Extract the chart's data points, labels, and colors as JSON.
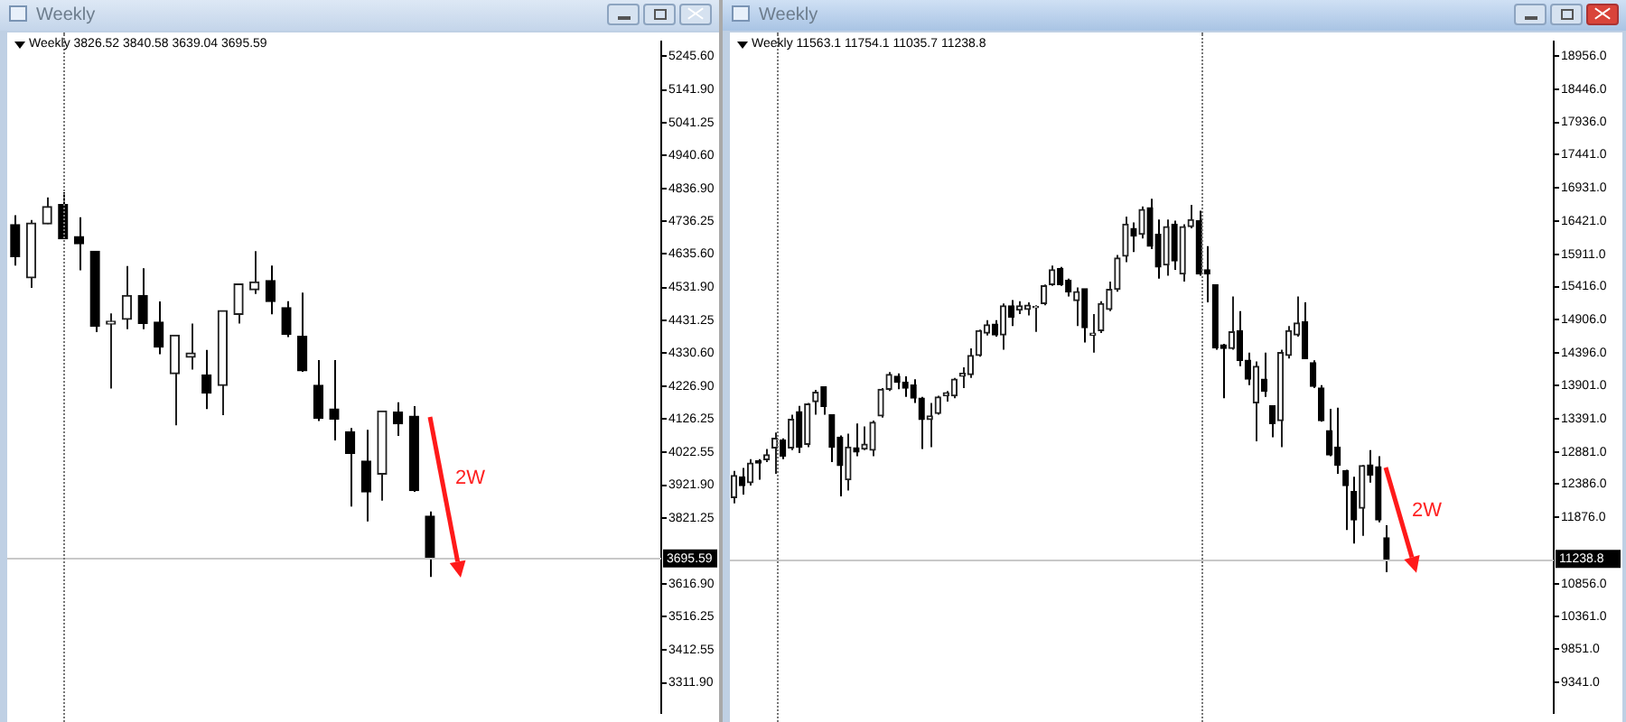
{
  "chart_data": [
    {
      "type": "candlestick",
      "title": "Weekly",
      "subtitle": "Weekly 3826.52 3840.58 3639.04 3695.59",
      "categories": [
        null,
        null,
        null,
        null,
        null,
        null,
        null,
        null,
        null,
        null,
        null,
        null,
        null,
        null,
        null,
        null,
        null,
        null,
        null,
        null,
        null,
        null,
        null,
        null,
        null,
        null,
        null,
        null,
        null,
        null,
        null,
        null,
        null,
        null,
        null,
        null,
        null,
        null,
        null,
        null,
        null
      ],
      "ohlc": [
        [
          4726,
          4755,
          4600,
          4627
        ],
        [
          4562,
          4740,
          4531,
          4731
        ],
        [
          4728,
          4810,
          4728,
          4782
        ],
        [
          4788,
          4826,
          4682,
          4682
        ],
        [
          4689,
          4749,
          4585,
          4667
        ],
        [
          4644,
          4644,
          4394,
          4412
        ],
        [
          4419,
          4452,
          4220,
          4428
        ],
        [
          4434,
          4598,
          4403,
          4507
        ],
        [
          4507,
          4591,
          4403,
          4421
        ],
        [
          4425,
          4489,
          4326,
          4348
        ],
        [
          4266,
          4385,
          4107,
          4385
        ],
        [
          4317,
          4421,
          4279,
          4330
        ],
        [
          4262,
          4339,
          4157,
          4206
        ],
        [
          4230,
          4461,
          4138,
          4461
        ],
        [
          4449,
          4543,
          4421,
          4543
        ],
        [
          4525,
          4644,
          4512,
          4549
        ],
        [
          4553,
          4600,
          4449,
          4489
        ],
        [
          4470,
          4490,
          4379,
          4388
        ],
        [
          4381,
          4516,
          4272,
          4275
        ],
        [
          4230,
          4308,
          4120,
          4129
        ],
        [
          4157,
          4308,
          4060,
          4126
        ],
        [
          4087,
          4098,
          3856,
          4020
        ],
        [
          3996,
          4093,
          3810,
          3901
        ],
        [
          3956,
          4151,
          3874,
          4151
        ],
        [
          4147,
          4178,
          4074,
          4111
        ],
        [
          4135,
          4166,
          3901,
          3905
        ],
        [
          3826.52,
          3840.58,
          3639.04,
          3695.59
        ],
        null,
        null,
        null,
        null,
        null,
        null,
        null,
        null,
        null,
        null,
        null,
        null,
        null,
        null
      ],
      "ylim": [
        3220,
        5290
      ],
      "yticks": [
        {
          "value": 5245.6,
          "label": "5245.60"
        },
        {
          "value": 5141.9,
          "label": "5141.90"
        },
        {
          "value": 5041.25,
          "label": "5041.25"
        },
        {
          "value": 4940.6,
          "label": "4940.60"
        },
        {
          "value": 4836.9,
          "label": "4836.90"
        },
        {
          "value": 4736.25,
          "label": "4736.25"
        },
        {
          "value": 4635.6,
          "label": "4635.60"
        },
        {
          "value": 4531.9,
          "label": "4531.90"
        },
        {
          "value": 4431.25,
          "label": "4431.25"
        },
        {
          "value": 4330.6,
          "label": "4330.60"
        },
        {
          "value": 4226.9,
          "label": "4226.90"
        },
        {
          "value": 4126.25,
          "label": "4126.25"
        },
        {
          "value": 4022.55,
          "label": "4022.55"
        },
        {
          "value": 3921.9,
          "label": "3921.90"
        },
        {
          "value": 3821.25,
          "label": "3821.25"
        },
        {
          "value": 3616.9,
          "label": "3616.90"
        },
        {
          "value": 3516.25,
          "label": "3516.25"
        },
        {
          "value": 3412.55,
          "label": "3412.55"
        },
        {
          "value": 3311.9,
          "label": "3311.90"
        }
      ],
      "ref_lines": [
        {
          "axis": "y",
          "value": 3695.59,
          "label": "3695.59",
          "color": "#c8c8c8"
        }
      ],
      "annotations": [
        "2W"
      ],
      "tick_labels": "y"
    },
    {
      "type": "candlestick",
      "title": "Weekly",
      "subtitle": "Weekly 11563.1 11754.1 11035.7 11238.8",
      "categories": [
        null,
        null,
        null,
        null,
        null,
        null,
        null,
        null,
        null,
        null,
        null,
        null,
        null,
        null,
        null,
        null,
        null,
        null,
        null,
        null,
        null,
        null,
        null,
        null,
        null,
        null,
        null,
        null,
        null,
        null,
        null,
        null,
        null,
        null,
        null,
        null,
        null,
        null,
        null,
        null,
        null,
        null,
        null,
        null,
        null,
        null,
        null,
        null,
        null,
        null,
        null,
        null,
        null,
        null,
        null,
        null,
        null,
        null,
        null,
        null,
        null,
        null,
        null,
        null,
        null,
        null,
        null,
        null,
        null,
        null,
        null,
        null,
        null,
        null,
        null,
        null,
        null,
        null,
        null,
        null,
        null,
        null,
        null,
        null,
        null,
        null,
        null,
        null,
        null,
        null,
        null,
        null,
        null,
        null,
        null,
        null,
        null,
        null,
        null,
        null,
        null
      ],
      "ohlc": [
        [
          12180,
          12589,
          12090,
          12516
        ],
        [
          12498,
          12634,
          12226,
          12362
        ],
        [
          12407,
          12770,
          12362,
          12707
        ],
        [
          12743,
          12770,
          12453,
          12707
        ],
        [
          12761,
          12924,
          12725,
          12834
        ],
        [
          12942,
          13178,
          12543,
          13088
        ],
        [
          13060,
          13088,
          12770,
          12815
        ],
        [
          12942,
          13450,
          12906,
          13378
        ],
        [
          13496,
          13587,
          12861,
          12952
        ],
        [
          12997,
          13632,
          12952,
          13614
        ],
        [
          13650,
          13831,
          13450,
          13795
        ],
        [
          13877,
          13877,
          13450,
          13577
        ],
        [
          13450,
          13450,
          12725,
          12952
        ],
        [
          13106,
          13133,
          12199,
          12670
        ],
        [
          12453,
          13160,
          12289,
          12952
        ],
        [
          12942,
          13314,
          12815,
          12879
        ],
        [
          12924,
          13269,
          12906,
          12997
        ],
        [
          12906,
          13360,
          12815,
          13333
        ],
        [
          13432,
          13859,
          13405,
          13841
        ],
        [
          13841,
          14104,
          13813,
          14067
        ],
        [
          14040,
          14085,
          13841,
          13949
        ],
        [
          13949,
          14040,
          13723,
          13859
        ],
        [
          13904,
          13995,
          13632,
          13704
        ],
        [
          13704,
          13723,
          12924,
          13378
        ],
        [
          13378,
          13632,
          12952,
          13432
        ],
        [
          13469,
          13741,
          13450,
          13723
        ],
        [
          13741,
          13813,
          13650,
          13786
        ],
        [
          13741,
          14013,
          13704,
          13995
        ],
        [
          14040,
          14176,
          13859,
          14085
        ],
        [
          14067,
          14467,
          14013,
          14358
        ],
        [
          14358,
          14757,
          14340,
          14739
        ],
        [
          14702,
          14902,
          14666,
          14829
        ],
        [
          14838,
          14902,
          14648,
          14675
        ],
        [
          14675,
          15156,
          14448,
          15120
        ],
        [
          15120,
          15210,
          14811,
          14947
        ],
        [
          15056,
          15192,
          14993,
          15120
        ],
        [
          15065,
          15174,
          14975,
          15129
        ],
        [
          15093,
          15129,
          14721,
          15111
        ],
        [
          15156,
          15446,
          15129,
          15428
        ],
        [
          15446,
          15737,
          15428,
          15673
        ],
        [
          15691,
          15718,
          15428,
          15446
        ],
        [
          15510,
          15537,
          15265,
          15337
        ],
        [
          15201,
          15401,
          14811,
          15337
        ],
        [
          15383,
          15383,
          14557,
          14784
        ],
        [
          14666,
          14993,
          14403,
          14702
        ],
        [
          14739,
          15192,
          14702,
          15156
        ],
        [
          15065,
          15492,
          15038,
          15374
        ],
        [
          15374,
          15900,
          15337,
          15854
        ],
        [
          15882,
          16490,
          15791,
          16372
        ],
        [
          16308,
          16399,
          15945,
          16190
        ],
        [
          16217,
          16644,
          16154,
          16598
        ],
        [
          16626,
          16762,
          15991,
          16036
        ],
        [
          16217,
          16444,
          15537,
          15718
        ],
        [
          15746,
          16444,
          15582,
          16335
        ],
        [
          16372,
          16426,
          15673,
          15809
        ],
        [
          15610,
          16372,
          15492,
          16335
        ],
        [
          16335,
          16671,
          16308,
          16444
        ],
        [
          16426,
          16580,
          15582,
          15610
        ],
        [
          15673,
          16036,
          15174,
          15610
        ],
        [
          15446,
          15446,
          14448,
          14476
        ],
        [
          14521,
          14539,
          13704,
          14467
        ],
        [
          14467,
          15265,
          14448,
          14721
        ],
        [
          14739,
          15038,
          14194,
          14285
        ],
        [
          14285,
          14403,
          13904,
          13995
        ],
        [
          13632,
          14267,
          13042,
          14194
        ],
        [
          13995,
          14403,
          13723,
          13813
        ],
        [
          13587,
          13587,
          13106,
          13314
        ],
        [
          13360,
          14448,
          12952,
          14403
        ],
        [
          14358,
          14811,
          14312,
          14739
        ],
        [
          14675,
          15265,
          14648,
          14857
        ],
        [
          14875,
          15174,
          14312,
          14312
        ],
        [
          14249,
          14285,
          13859,
          13886
        ],
        [
          13859,
          13904,
          13342,
          13360
        ],
        [
          13206,
          13541,
          12815,
          12834
        ],
        [
          12952,
          13559,
          12543,
          12679
        ],
        [
          12589,
          12607,
          11681,
          12362
        ],
        [
          12271,
          12498,
          11473,
          11836
        ],
        [
          12017,
          12679,
          11591,
          12670
        ],
        [
          12679,
          12906,
          12407,
          12525
        ],
        [
          12652,
          12815,
          11799,
          11836
        ],
        [
          11563.1,
          11754.1,
          11035.7,
          11238.8
        ],
        null,
        null,
        null,
        null,
        null,
        null,
        null,
        null,
        null,
        null,
        null,
        null,
        null,
        null,
        null,
        null,
        null,
        null,
        null,
        null
      ],
      "ylim": [
        8880,
        19170
      ],
      "yticks": [
        {
          "value": 18956,
          "label": "18956.0"
        },
        {
          "value": 18446,
          "label": "18446.0"
        },
        {
          "value": 17936,
          "label": "17936.0"
        },
        {
          "value": 17441,
          "label": "17441.0"
        },
        {
          "value": 16931,
          "label": "16931.0"
        },
        {
          "value": 16421,
          "label": "16421.0"
        },
        {
          "value": 15911,
          "label": "15911.0"
        },
        {
          "value": 15416,
          "label": "15416.0"
        },
        {
          "value": 14906,
          "label": "14906.0"
        },
        {
          "value": 14396,
          "label": "14396.0"
        },
        {
          "value": 13901,
          "label": "13901.0"
        },
        {
          "value": 13391,
          "label": "13391.0"
        },
        {
          "value": 12881,
          "label": "12881.0"
        },
        {
          "value": 12386,
          "label": "12386.0"
        },
        {
          "value": 11876,
          "label": "11876.0"
        },
        {
          "value": 10856,
          "label": "10856.0"
        },
        {
          "value": 10361,
          "label": "10361.0"
        },
        {
          "value": 9851,
          "label": "9851.0"
        },
        {
          "value": 9341,
          "label": "9341.0"
        }
      ],
      "ref_lines": [
        {
          "axis": "y",
          "value": 11238.8,
          "label": "11238.8",
          "color": "#c8c8c8"
        }
      ],
      "annotations": [
        "2W"
      ],
      "tick_labels": "y"
    }
  ]
}
